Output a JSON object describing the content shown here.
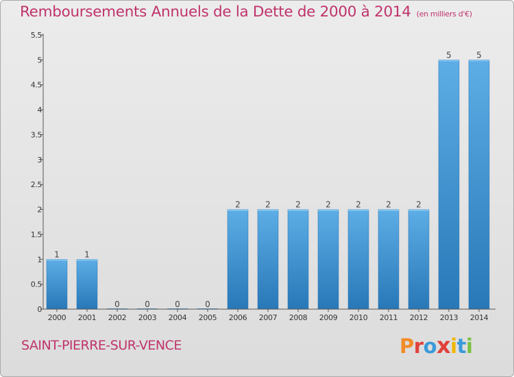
{
  "header": {
    "title": "Remboursements Annuels de la Dette de 2000 à 2014",
    "unit_note": "(en milliers d'€)"
  },
  "footer": {
    "commune": "SAINT-PIERRE-SUR-VENCE",
    "logo_text": "Proxiti",
    "logo_colors": [
      "#f28c28",
      "#e0413b",
      "#3a9ad9",
      "#e0413b",
      "#f2b705",
      "#3a9ad9",
      "#7ac143"
    ]
  },
  "colors": {
    "title": "#c0336b",
    "bar_light": "#5dade6",
    "bar_dark": "#2878b8",
    "axis": "#555555"
  },
  "chart_data": {
    "type": "bar",
    "title": "Remboursements Annuels de la Dette de 2000 à 2014",
    "xlabel": "",
    "ylabel": "",
    "categories": [
      "2000",
      "2001",
      "2002",
      "2003",
      "2004",
      "2005",
      "2006",
      "2007",
      "2008",
      "2009",
      "2010",
      "2011",
      "2012",
      "2013",
      "2014"
    ],
    "values": [
      1,
      1,
      0,
      0,
      0,
      0,
      2,
      2,
      2,
      2,
      2,
      2,
      2,
      5,
      5
    ],
    "data_labels": [
      "1",
      "1",
      "0",
      "0",
      "0",
      "0",
      "2",
      "2",
      "2",
      "2",
      "2",
      "2",
      "2",
      "5",
      "5"
    ],
    "ylim": [
      0,
      5.5
    ],
    "yticks": [
      0,
      0.5,
      1,
      1.5,
      2,
      2.5,
      3,
      3.5,
      4,
      4.5,
      5,
      5.5
    ],
    "ytick_labels": [
      "0",
      "0.5",
      "1",
      "1.5",
      "2",
      "2.5",
      "3",
      "3.5",
      "4",
      "4.5",
      "5",
      "5.5"
    ],
    "grid": false,
    "legend": "none"
  }
}
